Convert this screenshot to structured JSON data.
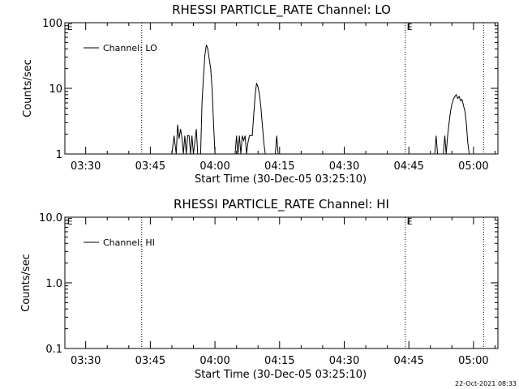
{
  "footer_timestamp": "22-Oct-2021 08:33",
  "chart_data": [
    {
      "type": "line",
      "title": "RHESSI PARTICLE_RATE Channel: LO",
      "xlabel": "Start Time (30-Dec-05 03:25:10)",
      "ylabel": "Counts/sec",
      "yscale": "log",
      "ylim": [
        1,
        100
      ],
      "yticks": [
        1,
        10,
        100
      ],
      "ytick_labels": [
        "1",
        "10",
        "100"
      ],
      "xlim": [
        "03:25:10",
        "05:05:40"
      ],
      "xtick_labels": [
        "03:30",
        "03:45",
        "04:00",
        "04:15",
        "04:30",
        "04:45",
        "05:00"
      ],
      "legend_placement": "top-left",
      "series": [
        {
          "name": "Channel: LO",
          "x": [
            "03:50:00",
            "03:50:30",
            "03:51:00",
            "03:51:20",
            "03:51:40",
            "03:52:00",
            "03:52:20",
            "03:52:40",
            "03:53:00",
            "03:53:20",
            "03:53:40",
            "03:54:00",
            "03:54:20",
            "03:54:40",
            "03:55:00",
            "03:55:20",
            "03:55:40",
            "03:56:00",
            "03:56:40",
            "03:57:00",
            "03:57:20",
            "03:57:40",
            "03:58:00",
            "03:58:20",
            "03:58:40",
            "03:59:00",
            "03:59:20",
            "03:59:40",
            "04:00:00",
            "04:00:20",
            "04:00:40",
            "04:01:00",
            "04:01:20",
            "04:01:40",
            "04:02:00",
            "04:04:00",
            "04:04:40",
            "04:05:00",
            "04:05:20",
            "04:05:40",
            "04:06:00",
            "04:06:20",
            "04:06:40",
            "04:07:00",
            "04:07:20",
            "04:07:40",
            "04:08:00",
            "04:08:20",
            "04:08:40",
            "04:09:00",
            "04:09:20",
            "04:09:40",
            "04:10:00",
            "04:10:20",
            "04:10:40",
            "04:11:00",
            "04:11:20",
            "04:11:40",
            "04:12:00",
            "04:12:20",
            "04:12:40",
            "04:14:00",
            "04:14:20",
            "04:14:40",
            "04:15:00",
            "04:42:00",
            "04:51:00",
            "04:51:20",
            "04:51:40",
            "04:52:00",
            "04:53:00",
            "04:53:20",
            "04:53:40",
            "04:54:00",
            "04:54:20",
            "04:54:40",
            "04:55:00",
            "04:55:20",
            "04:55:40",
            "04:56:00",
            "04:56:20",
            "04:56:40",
            "04:57:00",
            "04:57:20",
            "04:57:40",
            "04:58:00",
            "04:58:20",
            "04:58:40",
            "04:59:00"
          ],
          "y": [
            1,
            1.9,
            1,
            2.8,
            1.7,
            2.4,
            1.8,
            1,
            1.9,
            1,
            1.9,
            1.9,
            1,
            1.9,
            1,
            1.5,
            2.4,
            1,
            1,
            6,
            15,
            32,
            46,
            40,
            28,
            20,
            10,
            3,
            1,
            1,
            1,
            1,
            1,
            1,
            1,
            1,
            1,
            1.9,
            1,
            1.9,
            1,
            1.9,
            1.6,
            1.9,
            1,
            1.5,
            1.9,
            1.9,
            1.9,
            4,
            8,
            12,
            10.5,
            8,
            5,
            2.8,
            1.5,
            1,
            1,
            1,
            1,
            1,
            1.9,
            1,
            1,
            1,
            1,
            1.9,
            1,
            1,
            1,
            1.9,
            1,
            1.9,
            3,
            4.5,
            5.8,
            6.8,
            7.5,
            8,
            7,
            7.5,
            6.5,
            6.8,
            5.5,
            4.5,
            3,
            1.5,
            1
          ]
        }
      ],
      "annotations": [
        {
          "text": "E",
          "x": "03:25:30"
        },
        {
          "text": "E",
          "x": "04:44:20"
        }
      ],
      "vertical_dotted_lines_x": [
        "03:43:00",
        "04:44:10",
        "05:02:20"
      ]
    },
    {
      "type": "line",
      "title": "RHESSI PARTICLE_RATE Channel: HI",
      "xlabel": "Start Time (30-Dec-05 03:25:10)",
      "ylabel": "Counts/sec",
      "yscale": "log",
      "ylim": [
        0.1,
        10
      ],
      "yticks": [
        0.1,
        1,
        10
      ],
      "ytick_labels": [
        "0.1",
        "1.0",
        "10.0"
      ],
      "xlim": [
        "03:25:10",
        "05:05:40"
      ],
      "xtick_labels": [
        "03:30",
        "03:45",
        "04:00",
        "04:15",
        "04:30",
        "04:45",
        "05:00"
      ],
      "legend_placement": "top-left",
      "series": [
        {
          "name": "Channel: HI",
          "x": [],
          "y": []
        }
      ],
      "annotations": [
        {
          "text": "E",
          "x": "03:25:30"
        },
        {
          "text": "E",
          "x": "04:44:20"
        }
      ],
      "vertical_dotted_lines_x": [
        "03:43:00",
        "04:44:10",
        "05:02:20"
      ]
    }
  ]
}
